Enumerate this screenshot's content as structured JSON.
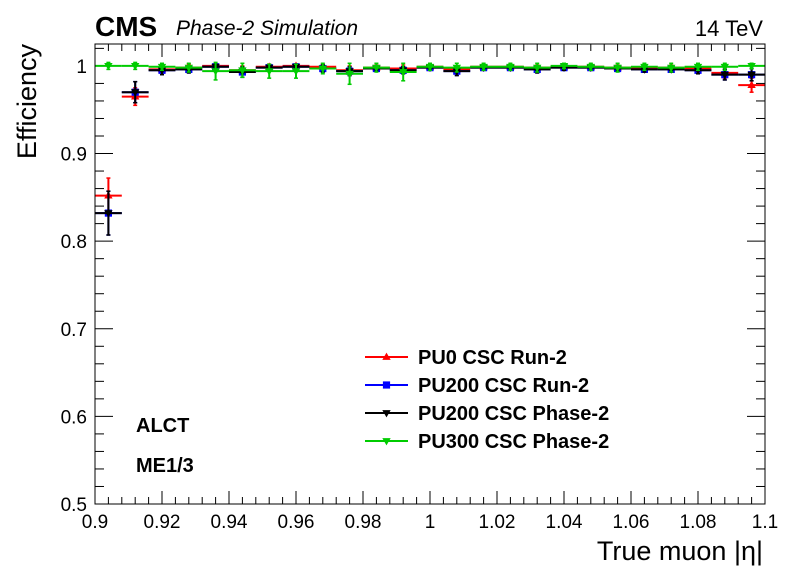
{
  "header": {
    "experiment": "CMS",
    "subtitle": "Phase-2 Simulation",
    "energy": "14 TeV"
  },
  "annotations": {
    "trigger": "ALCT",
    "station": "ME1/3"
  },
  "chart_data": {
    "type": "scatter",
    "xlabel": "True muon |η|",
    "ylabel": "Efficiency",
    "xlim": [
      0.9,
      1.1
    ],
    "ylim": [
      0.5,
      1.025
    ],
    "x_ticks": [
      0.9,
      0.92,
      0.94,
      0.96,
      0.98,
      1,
      1.02,
      1.04,
      1.06,
      1.08,
      1.1
    ],
    "x_tick_labels": [
      "0.9",
      "0.92",
      "0.94",
      "0.96",
      "0.98",
      "1",
      "1.02",
      "1.04",
      "1.06",
      "1.08",
      "1.1"
    ],
    "y_ticks": [
      0.5,
      0.6,
      0.7,
      0.8,
      0.9,
      1
    ],
    "y_tick_labels": [
      "0.5",
      "0.6",
      "0.7",
      "0.8",
      "0.9",
      "1"
    ],
    "grid": false,
    "legend_position": "lower-right",
    "bin_half_width": 0.004,
    "x": [
      0.904,
      0.912,
      0.92,
      0.928,
      0.936,
      0.944,
      0.952,
      0.96,
      0.968,
      0.976,
      0.984,
      0.992,
      1.0,
      1.008,
      1.016,
      1.024,
      1.032,
      1.04,
      1.048,
      1.056,
      1.064,
      1.072,
      1.08,
      1.088,
      1.096
    ],
    "series": [
      {
        "name": "PU0 CSC Run-2",
        "color": "#ff0000",
        "marker": "triangle-up",
        "values": [
          0.852,
          0.965,
          0.996,
          0.998,
          1.0,
          0.995,
          0.999,
          1.0,
          0.999,
          0.995,
          0.998,
          0.997,
          0.999,
          0.996,
          0.999,
          0.999,
          0.998,
          0.999,
          0.999,
          0.998,
          0.998,
          0.998,
          0.997,
          0.992,
          0.978
        ],
        "errors": [
          0.02,
          0.01,
          0.004,
          0.004,
          0.002,
          0.005,
          0.003,
          0.002,
          0.003,
          0.005,
          0.003,
          0.004,
          0.003,
          0.004,
          0.003,
          0.003,
          0.003,
          0.003,
          0.003,
          0.003,
          0.003,
          0.003,
          0.004,
          0.006,
          0.008
        ]
      },
      {
        "name": "PU200 CSC Run-2",
        "color": "#0000ff",
        "marker": "square",
        "values": [
          0.832,
          0.97,
          0.995,
          0.996,
          0.999,
          0.993,
          0.998,
          0.999,
          0.997,
          0.994,
          0.997,
          0.995,
          0.998,
          0.994,
          0.998,
          0.998,
          0.996,
          0.998,
          0.998,
          0.997,
          0.996,
          0.996,
          0.995,
          0.99,
          0.99
        ],
        "errors": [
          0.025,
          0.012,
          0.005,
          0.004,
          0.003,
          0.006,
          0.003,
          0.003,
          0.004,
          0.005,
          0.003,
          0.004,
          0.003,
          0.005,
          0.003,
          0.003,
          0.004,
          0.003,
          0.003,
          0.003,
          0.003,
          0.003,
          0.004,
          0.006,
          0.007
        ]
      },
      {
        "name": "PU200 CSC Phase-2",
        "color": "#000000",
        "marker": "triangle-down",
        "values": [
          0.832,
          0.97,
          0.995,
          0.996,
          0.999,
          0.993,
          0.998,
          0.999,
          0.997,
          0.994,
          0.997,
          0.995,
          0.998,
          0.994,
          0.998,
          0.998,
          0.996,
          0.998,
          0.998,
          0.997,
          0.996,
          0.996,
          0.995,
          0.99,
          0.99
        ],
        "errors": [
          0.025,
          0.012,
          0.005,
          0.004,
          0.003,
          0.006,
          0.003,
          0.003,
          0.004,
          0.005,
          0.003,
          0.004,
          0.003,
          0.005,
          0.003,
          0.003,
          0.004,
          0.003,
          0.003,
          0.003,
          0.003,
          0.003,
          0.004,
          0.006,
          0.007
        ]
      },
      {
        "name": "PU300 CSC Phase-2",
        "color": "#00cc00",
        "marker": "triangle-down",
        "values": [
          1.0,
          1.0,
          0.999,
          0.998,
          0.994,
          0.995,
          0.994,
          0.994,
          0.997,
          0.991,
          0.998,
          0.993,
          0.999,
          0.998,
          0.999,
          0.999,
          0.998,
          1.0,
          0.999,
          0.998,
          0.999,
          0.998,
          0.999,
          0.999,
          1.0
        ],
        "errors": [
          0.004,
          0.004,
          0.004,
          0.005,
          0.01,
          0.008,
          0.008,
          0.008,
          0.006,
          0.012,
          0.005,
          0.01,
          0.004,
          0.005,
          0.004,
          0.004,
          0.005,
          0.003,
          0.004,
          0.005,
          0.004,
          0.005,
          0.004,
          0.004,
          0.003
        ]
      }
    ]
  }
}
